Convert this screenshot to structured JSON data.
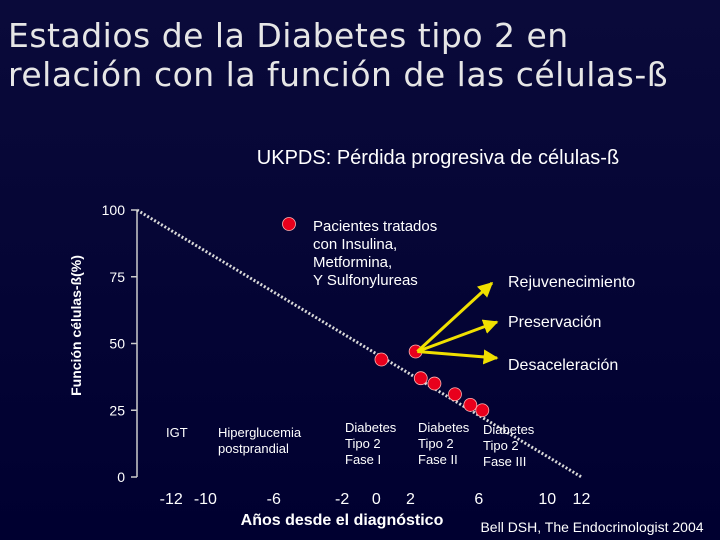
{
  "slide": {
    "title_line1": "Estadios de la Diabetes tipo 2 en",
    "title_line2": "relación con la función de las células-ß",
    "citation": "Bell DSH, The Endocrinologist 2004"
  },
  "chart_data": {
    "type": "scatter",
    "title": "UKPDS: Pérdida progresiva de células-ß",
    "xlabel": "Años desde el diagnóstico",
    "ylabel": "Función células-ß(%)",
    "xlim": [
      -14,
      12.5
    ],
    "ylim": [
      0,
      100
    ],
    "x_tick_labels": [
      "-12",
      "-10",
      "-6",
      "-2",
      "0",
      "2",
      "6",
      "10",
      "12"
    ],
    "x_tick_values": [
      -12,
      -10,
      -6,
      -2,
      0,
      2,
      6,
      10,
      12
    ],
    "y_ticks": [
      0,
      25,
      50,
      75,
      100
    ],
    "series": [
      {
        "type": "line",
        "style": "dotted",
        "points": [
          [
            -14,
            100
          ],
          [
            12,
            0
          ]
        ]
      },
      {
        "type": "scatter",
        "color": "#e8001c",
        "points": [
          [
            0.3,
            44
          ],
          [
            2.3,
            47
          ],
          [
            2.6,
            37
          ],
          [
            3.4,
            35
          ],
          [
            4.6,
            31
          ],
          [
            5.5,
            27
          ],
          [
            6.2,
            25
          ]
        ]
      }
    ],
    "legend": {
      "label_lines": [
        "Pacientes tratados",
        "con Insulina,",
        "Metformina,",
        "Y Sulfonylureas"
      ],
      "marker_color": "#e8001c"
    },
    "stage_labels": [
      {
        "lines": [
          "IGT"
        ]
      },
      {
        "lines": [
          "Hiperglucemia",
          "postprandial"
        ]
      },
      {
        "lines": [
          "Diabetes",
          "Tipo 2",
          "Fase I"
        ]
      },
      {
        "lines": [
          "Diabetes",
          "Tipo 2",
          "Fase II"
        ]
      },
      {
        "lines": [
          "Diabetes",
          "Tipo 2",
          "Fase III"
        ]
      }
    ],
    "annotations": {
      "labels": [
        "Rejuvenecimiento",
        "Preservación",
        "Desaceleración"
      ],
      "arrow_color": "#f0e000",
      "arrow_origin": [
        2.4,
        47
      ]
    }
  }
}
